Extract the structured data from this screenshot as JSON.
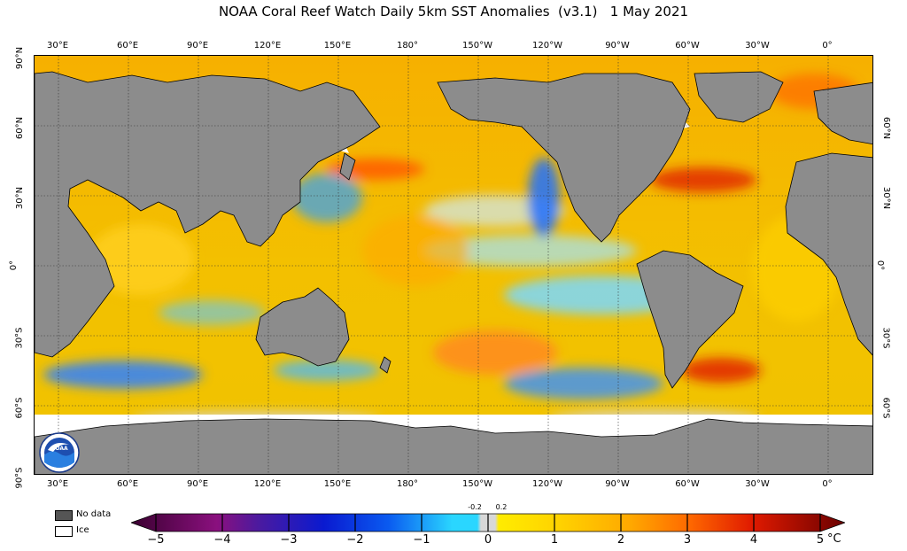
{
  "title": "NOAA Coral Reef Watch Daily 5km SST Anomalies  (v3.1)   1 May 2021",
  "longitude_ticks": [
    "30°E",
    "60°E",
    "90°E",
    "120°E",
    "150°E",
    "180°",
    "150°W",
    "120°W",
    "90°W",
    "60°W",
    "30°W",
    "0°"
  ],
  "latitude_ticks_left": [
    "90°N",
    "60°N",
    "30°N",
    "0°",
    "30°S",
    "60°S",
    "90°S"
  ],
  "latitude_ticks_right": [
    "60°N",
    "30°N",
    "0°",
    "30°S",
    "60°S"
  ],
  "legend": {
    "no_data": "No data",
    "ice": "Ice"
  },
  "colors": {
    "no_data": "#8c8c8c",
    "ice": "#ffffff",
    "coast": "#000000"
  },
  "colorbar": {
    "ticks": [
      "−5",
      "−4",
      "−3",
      "−2",
      "−1",
      "0",
      "1",
      "2",
      "3",
      "4",
      "5"
    ],
    "small_labels": [
      "-0.2",
      "0.2"
    ],
    "unit": "°C",
    "stops": [
      "#2a0020",
      "#7a0a78",
      "#3a1aa8",
      "#0a2ad8",
      "#0a70ff",
      "#2ad0ff",
      "#d8d8d8",
      "#ffe600",
      "#ffb000",
      "#ff6a00",
      "#e01a00",
      "#8a0000"
    ]
  },
  "logo": "NOAA"
}
